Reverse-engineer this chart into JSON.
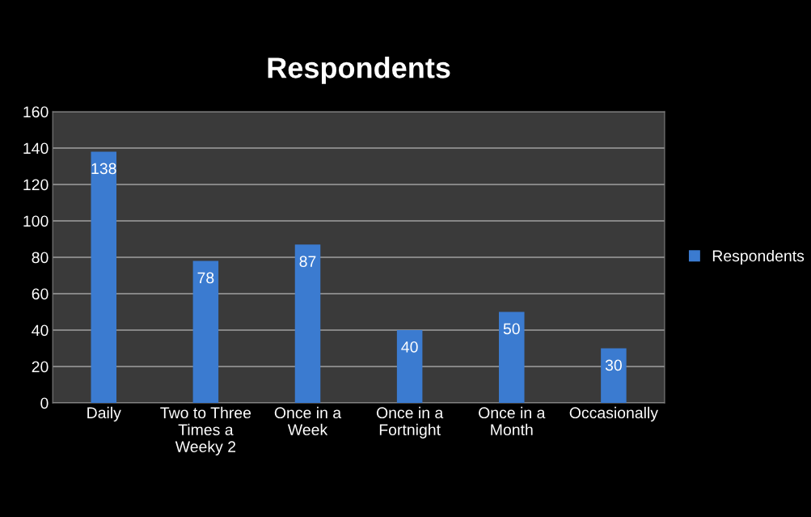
{
  "chart_data": {
    "type": "bar",
    "title": "Respondents",
    "categories": [
      "Daily",
      "Two to Three Times a Weeky 2",
      "Once in a Week",
      "Once in a Fortnight",
      "Once in a Month",
      "Occasionally"
    ],
    "series": [
      {
        "name": "Respondents",
        "color": "#3b7bd0",
        "values": [
          138,
          78,
          87,
          40,
          50,
          30
        ]
      }
    ],
    "ylim": [
      0,
      160
    ],
    "yticks": [
      0,
      20,
      40,
      60,
      80,
      100,
      120,
      140,
      160
    ],
    "grid": "y",
    "legend": "right",
    "data_labels": true
  }
}
